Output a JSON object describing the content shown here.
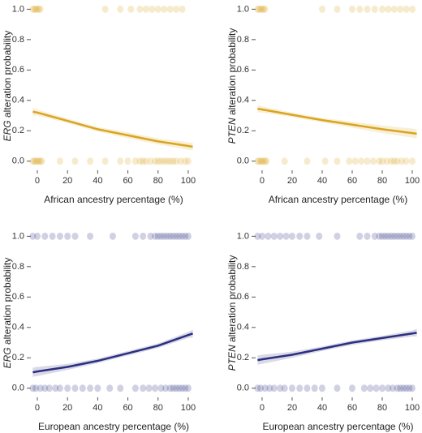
{
  "chart_data": [
    {
      "type": "line",
      "color": "#d9a520",
      "ylabel_gene": "ERG",
      "ylabel": "alteration probability",
      "xlabel": "African ancestry percentage (%)",
      "xlim": [
        -4.3,
        105.4
      ],
      "ylim": [
        -0.06,
        1.05
      ],
      "xticks": [
        0,
        20,
        40,
        60,
        80,
        100
      ],
      "yticks": [
        {
          "value": 0,
          "label": "0.0"
        },
        {
          "value": 0.2,
          "label": "0.2"
        },
        {
          "value": 0.4,
          "label": "0.4"
        },
        {
          "value": 0.6,
          "label": "0.6"
        },
        {
          "value": 0.8,
          "label": "0.8"
        },
        {
          "value": 1,
          "label": "1.0"
        }
      ],
      "fit": {
        "x": [
          -3,
          0,
          20,
          40,
          60,
          80,
          100,
          103
        ],
        "values": [
          0.325,
          0.32,
          0.265,
          0.21,
          0.17,
          0.13,
          0.1,
          0.095
        ],
        "lower": [
          0.3,
          0.3,
          0.25,
          0.195,
          0.15,
          0.11,
          0.075,
          0.07
        ],
        "upper": [
          0.35,
          0.34,
          0.28,
          0.225,
          0.19,
          0.15,
          0.125,
          0.12
        ]
      },
      "points": [
        {
          "y": 1,
          "x": [
            -3,
            -2,
            -1,
            0,
            1,
            2,
            45,
            55,
            62,
            68,
            72,
            76,
            80,
            84,
            88,
            92,
            96
          ]
        },
        {
          "y": 0,
          "x": [
            -3,
            -2,
            -1,
            0,
            1,
            2,
            3,
            15,
            25,
            35,
            45,
            55,
            60,
            65,
            68,
            70,
            72,
            75,
            78,
            80,
            82,
            84,
            86,
            88,
            90,
            92,
            95,
            98,
            100
          ]
        }
      ]
    },
    {
      "type": "line",
      "color": "#d9a520",
      "ylabel_gene": "PTEN",
      "ylabel": "alteration probability",
      "xlabel": "African ancestry percentage (%)",
      "xlim": [
        -4.3,
        105.4
      ],
      "ylim": [
        -0.06,
        1.05
      ],
      "xticks": [
        0,
        20,
        40,
        60,
        80,
        100
      ],
      "yticks": [
        {
          "value": 0,
          "label": "0.0"
        },
        {
          "value": 0.2,
          "label": "0.2"
        },
        {
          "value": 0.4,
          "label": "0.4"
        },
        {
          "value": 0.6,
          "label": "0.6"
        },
        {
          "value": 0.8,
          "label": "0.8"
        },
        {
          "value": 1,
          "label": "1.0"
        }
      ],
      "fit": {
        "x": [
          -3,
          0,
          20,
          40,
          60,
          80,
          100,
          103
        ],
        "values": [
          0.345,
          0.34,
          0.305,
          0.27,
          0.24,
          0.21,
          0.185,
          0.18
        ],
        "lower": [
          0.32,
          0.32,
          0.29,
          0.255,
          0.22,
          0.185,
          0.155,
          0.15
        ],
        "upper": [
          0.37,
          0.36,
          0.32,
          0.285,
          0.26,
          0.235,
          0.215,
          0.21
        ]
      },
      "points": [
        {
          "y": 1,
          "x": [
            -3,
            -2,
            -1,
            0,
            1,
            2,
            40,
            50,
            60,
            65,
            70,
            75,
            80,
            84,
            88,
            92,
            96,
            100
          ]
        },
        {
          "y": 0,
          "x": [
            -3,
            -2,
            -1,
            0,
            1,
            2,
            3,
            15,
            30,
            42,
            50,
            58,
            62,
            66,
            70,
            74,
            78,
            80,
            83,
            86,
            88,
            90,
            93,
            96,
            100
          ]
        }
      ]
    },
    {
      "type": "line",
      "color": "#2b2f80",
      "ylabel_gene": "ERG",
      "ylabel": "alteration probability",
      "xlabel": "European ancestry percentage (%)",
      "xlim": [
        -4.3,
        105.4
      ],
      "ylim": [
        -0.06,
        1.05
      ],
      "xticks": [
        0,
        20,
        40,
        60,
        80,
        100
      ],
      "yticks": [
        {
          "value": 0,
          "label": "0.0"
        },
        {
          "value": 0.2,
          "label": "0.2"
        },
        {
          "value": 0.4,
          "label": "0.4"
        },
        {
          "value": 0.6,
          "label": "0.6"
        },
        {
          "value": 0.8,
          "label": "0.8"
        },
        {
          "value": 1,
          "label": "1.0"
        }
      ],
      "fit": {
        "x": [
          -3,
          0,
          20,
          40,
          60,
          80,
          100,
          103
        ],
        "values": [
          0.105,
          0.11,
          0.14,
          0.18,
          0.23,
          0.28,
          0.35,
          0.36
        ],
        "lower": [
          0.075,
          0.08,
          0.12,
          0.165,
          0.215,
          0.265,
          0.33,
          0.335
        ],
        "upper": [
          0.135,
          0.14,
          0.16,
          0.195,
          0.245,
          0.295,
          0.37,
          0.385
        ]
      },
      "points": [
        {
          "y": 1,
          "x": [
            -3,
            0,
            5,
            10,
            15,
            20,
            25,
            35,
            50,
            65,
            70,
            75,
            78,
            80,
            82,
            84,
            86,
            88,
            90,
            92,
            94,
            96,
            98,
            100
          ]
        },
        {
          "y": 0,
          "x": [
            -3,
            -1,
            2,
            5,
            8,
            12,
            15,
            20,
            25,
            30,
            35,
            40,
            48,
            55,
            65,
            70,
            74,
            78,
            82,
            85,
            88,
            90,
            92,
            94,
            96,
            98,
            100
          ]
        }
      ]
    },
    {
      "type": "line",
      "color": "#2b2f80",
      "ylabel_gene": "PTEN",
      "ylabel": "alteration probability",
      "xlabel": "European ancestry percentage (%)",
      "xlim": [
        -4.3,
        105.4
      ],
      "ylim": [
        -0.06,
        1.05
      ],
      "xticks": [
        0,
        20,
        40,
        60,
        80,
        100
      ],
      "yticks": [
        {
          "value": 0,
          "label": "0.0"
        },
        {
          "value": 0.2,
          "label": "0.2"
        },
        {
          "value": 0.4,
          "label": "0.4"
        },
        {
          "value": 0.6,
          "label": "0.6"
        },
        {
          "value": 0.8,
          "label": "0.8"
        },
        {
          "value": 1,
          "label": "1.0"
        }
      ],
      "fit": {
        "x": [
          -3,
          0,
          20,
          40,
          60,
          80,
          100,
          103
        ],
        "values": [
          0.185,
          0.19,
          0.22,
          0.26,
          0.3,
          0.33,
          0.36,
          0.365
        ],
        "lower": [
          0.155,
          0.16,
          0.2,
          0.245,
          0.285,
          0.315,
          0.34,
          0.34
        ],
        "upper": [
          0.215,
          0.22,
          0.24,
          0.275,
          0.315,
          0.345,
          0.38,
          0.39
        ]
      },
      "points": [
        {
          "y": 1,
          "x": [
            -3,
            0,
            4,
            8,
            12,
            16,
            20,
            25,
            30,
            38,
            50,
            65,
            70,
            75,
            78,
            80,
            82,
            84,
            86,
            88,
            90,
            92,
            94,
            96,
            98,
            100
          ]
        },
        {
          "y": 0,
          "x": [
            -3,
            -1,
            2,
            5,
            8,
            12,
            15,
            20,
            25,
            30,
            35,
            40,
            50,
            60,
            68,
            72,
            76,
            80,
            84,
            87,
            90,
            92,
            94,
            96,
            98,
            100
          ]
        }
      ]
    }
  ]
}
